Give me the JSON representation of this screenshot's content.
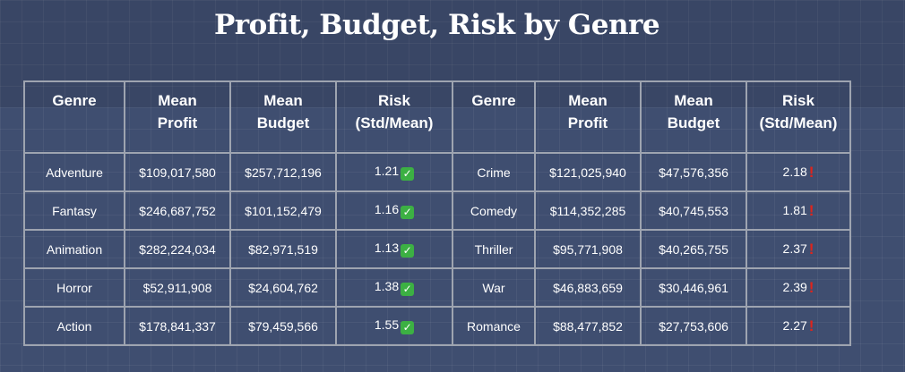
{
  "page": {
    "title": "Profit, Budget, Risk by Genre"
  },
  "chart_data": {
    "type": "table",
    "title": "Profit, Budget, Risk by Genre",
    "columns": [
      "Genre",
      "Mean Profit",
      "Mean Budget",
      "Risk (Std/Mean)",
      "Genre",
      "Mean Profit",
      "Mean Budget",
      "Risk (Std/Mean)"
    ],
    "header_lines": [
      [
        "Genre"
      ],
      [
        "Mean",
        "Profit"
      ],
      [
        "Mean",
        "Budget"
      ],
      [
        "Risk",
        "(Std/Mean)"
      ],
      [
        "Genre"
      ],
      [
        "Mean",
        "Profit"
      ],
      [
        "Mean",
        "Budget"
      ],
      [
        "Risk",
        "(Std/Mean)"
      ]
    ],
    "rows": [
      [
        {
          "genre": "Adventure",
          "mean_profit": "$109,017,580",
          "mean_budget": "$257,712,196",
          "risk": "1.21",
          "risk_icon": "check-icon"
        },
        {
          "genre": "Crime",
          "mean_profit": "$121,025,940",
          "mean_budget": "$47,576,356",
          "risk": "2.18",
          "risk_icon": "exclamation-icon"
        }
      ],
      [
        {
          "genre": "Fantasy",
          "mean_profit": "$246,687,752",
          "mean_budget": "$101,152,479",
          "risk": "1.16",
          "risk_icon": "check-icon"
        },
        {
          "genre": "Comedy",
          "mean_profit": "$114,352,285",
          "mean_budget": "$40,745,553",
          "risk": "1.81",
          "risk_icon": "exclamation-icon"
        }
      ],
      [
        {
          "genre": "Animation",
          "mean_profit": "$282,224,034",
          "mean_budget": "$82,971,519",
          "risk": "1.13",
          "risk_icon": "check-icon"
        },
        {
          "genre": "Thriller",
          "mean_profit": "$95,771,908",
          "mean_budget": "$40,265,755",
          "risk": "2.37",
          "risk_icon": "exclamation-icon"
        }
      ],
      [
        {
          "genre": "Horror",
          "mean_profit": "$52,911,908",
          "mean_budget": "$24,604,762",
          "risk": "1.38",
          "risk_icon": "check-icon"
        },
        {
          "genre": "War",
          "mean_profit": "$46,883,659",
          "mean_budget": "$30,446,961",
          "risk": "2.39",
          "risk_icon": "exclamation-icon"
        }
      ],
      [
        {
          "genre": "Action",
          "mean_profit": "$178,841,337",
          "mean_budget": "$79,459,566",
          "risk": "1.55",
          "risk_icon": "check-icon"
        },
        {
          "genre": "Romance",
          "mean_profit": "$88,477,852",
          "mean_budget": "$27,753,606",
          "risk": "2.27",
          "risk_icon": "exclamation-icon"
        }
      ]
    ]
  },
  "colors": {
    "background": "#3f4e70",
    "border": "#9ea4b0",
    "check": "#3cb043",
    "alert": "#e0241b"
  }
}
